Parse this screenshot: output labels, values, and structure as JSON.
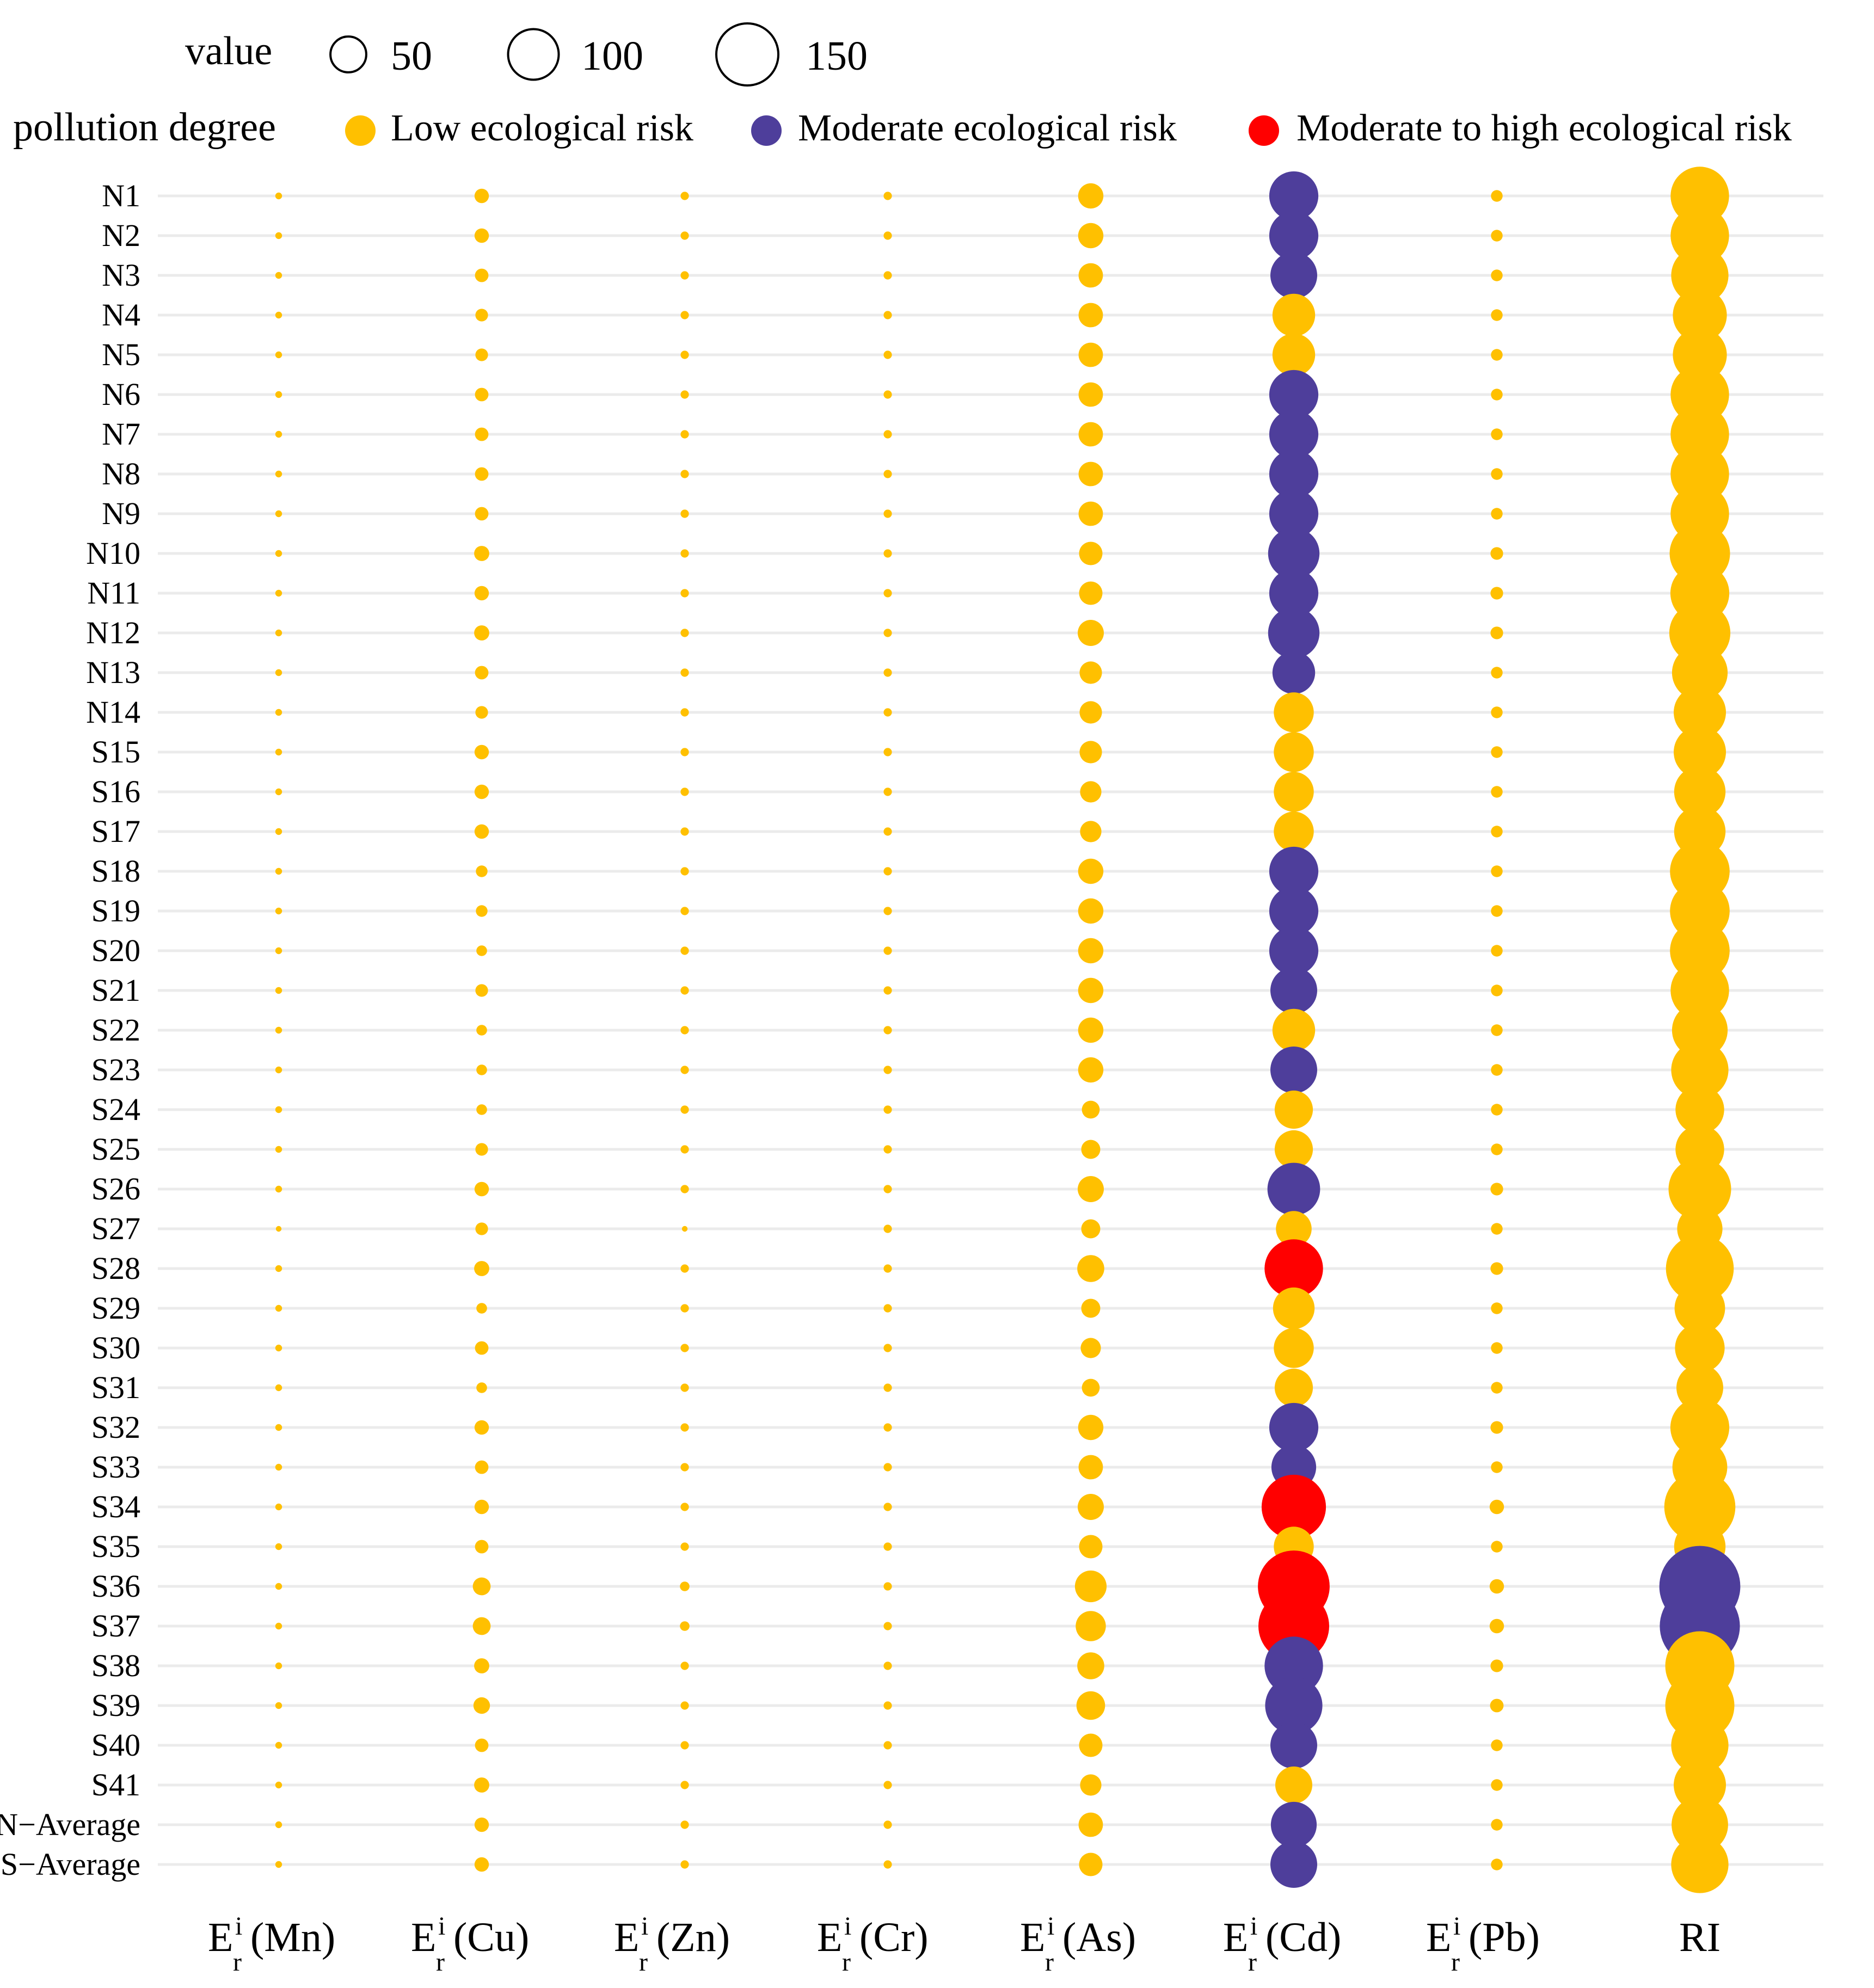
{
  "chart_data": {
    "type": "scatter",
    "subtype": "bubble",
    "title": "",
    "xlabel": "",
    "ylabel": "",
    "grid": true,
    "legend_position": "top",
    "size_legend": {
      "title": "value",
      "entries": [
        {
          "value": 50,
          "label": "50"
        },
        {
          "value": 100,
          "label": "100"
        },
        {
          "value": 150,
          "label": "150"
        }
      ]
    },
    "color_legend": {
      "title": "pollution degree",
      "entries": [
        {
          "key": "low",
          "label": "Low ecological risk",
          "color": "#ffc000"
        },
        {
          "key": "moderate",
          "label": "Moderate ecological risk",
          "color": "#4e3e9b"
        },
        {
          "key": "high",
          "label": "Moderate to high ecological risk",
          "color": "#ff0000"
        }
      ]
    },
    "x_categories": [
      {
        "label": "E",
        "sub": "r",
        "sup": "i",
        "paren": "(Mn)"
      },
      {
        "label": "E",
        "sub": "r",
        "sup": "i",
        "paren": "(Cu)"
      },
      {
        "label": "E",
        "sub": "r",
        "sup": "i",
        "paren": "(Zn)"
      },
      {
        "label": "E",
        "sub": "r",
        "sup": "i",
        "paren": "(Cr)"
      },
      {
        "label": "E",
        "sub": "r",
        "sup": "i",
        "paren": "(As)"
      },
      {
        "label": "E",
        "sub": "r",
        "sup": "i",
        "paren": "(Cd)"
      },
      {
        "label": "E",
        "sub": "r",
        "sup": "i",
        "paren": "(Pb)"
      },
      {
        "label": "RI",
        "sub": "",
        "sup": "",
        "paren": ""
      }
    ],
    "y_categories": [
      "N1",
      "N2",
      "N3",
      "N4",
      "N5",
      "N6",
      "N7",
      "N8",
      "N9",
      "N10",
      "N11",
      "N12",
      "N13",
      "N14",
      "S15",
      "S16",
      "S17",
      "S18",
      "S19",
      "S20",
      "S21",
      "S22",
      "S23",
      "S24",
      "S25",
      "S26",
      "S27",
      "S28",
      "S29",
      "S30",
      "S31",
      "S32",
      "S33",
      "S34",
      "S35",
      "S36",
      "S37",
      "S38",
      "S39",
      "S40",
      "S41",
      "N−Average",
      "S−Average"
    ],
    "series": [
      {
        "name": "Mn",
        "values": [
          1,
          1,
          1,
          1,
          1,
          1,
          1,
          1,
          1,
          1,
          1,
          1,
          1,
          1,
          1,
          1,
          1,
          1,
          1,
          1,
          1,
          1,
          1,
          1,
          1,
          1,
          0.7,
          1,
          1,
          1,
          1,
          1,
          1,
          1,
          1,
          1,
          1,
          1,
          1,
          1,
          1,
          1,
          1
        ]
      },
      {
        "name": "Cu",
        "values": [
          4.5,
          4.5,
          4,
          3.5,
          3.5,
          4,
          4,
          4,
          4,
          5,
          4.5,
          5,
          4,
          3.5,
          4.5,
          4.5,
          4.5,
          3,
          3,
          2.5,
          3.5,
          2.5,
          2.5,
          2.5,
          3.5,
          4.5,
          3.5,
          5,
          2.5,
          4,
          2.5,
          4.5,
          4,
          4.5,
          4,
          7,
          7,
          5,
          6,
          4,
          5,
          4.5,
          4.5
        ]
      },
      {
        "name": "Zn",
        "values": [
          1.5,
          1.5,
          1.5,
          1.5,
          1.5,
          1.5,
          1.5,
          1.5,
          1.5,
          1.5,
          1.5,
          1.5,
          1.5,
          1.5,
          1.5,
          1.5,
          1.5,
          1.5,
          1.5,
          1.5,
          1.5,
          1.5,
          1.5,
          1.5,
          1.5,
          1.5,
          0.7,
          1.5,
          1.5,
          1.5,
          1.5,
          1.5,
          1.5,
          1.5,
          1.5,
          2,
          2,
          1.5,
          1.5,
          1.5,
          1.5,
          1.5,
          1.5
        ]
      },
      {
        "name": "Cr",
        "values": [
          1.5,
          1.5,
          1.5,
          1.5,
          1.5,
          1.5,
          1.5,
          1.5,
          1.5,
          1.5,
          1.5,
          1.5,
          1.5,
          1.5,
          1.5,
          1.5,
          1.5,
          1.5,
          1.5,
          1.5,
          1.5,
          1.5,
          1.5,
          1.5,
          1.5,
          1.5,
          1.5,
          1.5,
          1.5,
          1.5,
          1.5,
          1.5,
          1.5,
          1.5,
          1.5,
          1.5,
          1.5,
          1.5,
          1.5,
          1.5,
          1.5,
          1.5,
          1.5
        ]
      },
      {
        "name": "As",
        "values": [
          14,
          14,
          13,
          13,
          13,
          13,
          13,
          13,
          13,
          12,
          12,
          15,
          11,
          11,
          11,
          10,
          10,
          14,
          14,
          14,
          14,
          14,
          14,
          7,
          8,
          15,
          8,
          16,
          8,
          9,
          7,
          14,
          13,
          15,
          12,
          22,
          20,
          16,
          18,
          12,
          10,
          13,
          12
        ]
      },
      {
        "name": "Cd",
        "values": [
          53,
          53,
          48,
          40,
          40,
          53,
          53,
          53,
          53,
          58,
          53,
          58,
          40,
          35,
          35,
          35,
          35,
          53,
          53,
          53,
          48,
          40,
          48,
          32,
          32,
          61,
          28,
          75,
          38,
          35,
          32,
          53,
          44,
          91,
          35,
          113,
          110,
          75,
          72,
          48,
          30,
          46,
          48
        ],
        "colors": [
          "moderate",
          "moderate",
          "moderate",
          "low",
          "low",
          "moderate",
          "moderate",
          "moderate",
          "moderate",
          "moderate",
          "moderate",
          "moderate",
          "moderate",
          "low",
          "low",
          "low",
          "low",
          "moderate",
          "moderate",
          "moderate",
          "moderate",
          "low",
          "moderate",
          "low",
          "low",
          "moderate",
          "low",
          "high",
          "low",
          "low",
          "low",
          "moderate",
          "moderate",
          "high",
          "low",
          "high",
          "high",
          "moderate",
          "moderate",
          "moderate",
          "low",
          "moderate",
          "moderate"
        ]
      },
      {
        "name": "Pb",
        "values": [
          3,
          3,
          3,
          3,
          3,
          3,
          3,
          3,
          3,
          3.5,
          3.5,
          3.5,
          3,
          3,
          3,
          3,
          3,
          3,
          3,
          3,
          3,
          3,
          3,
          3,
          3,
          3.5,
          3,
          3.5,
          3,
          3,
          3,
          3.5,
          3,
          4.5,
          3,
          4.5,
          4.5,
          3.5,
          4,
          3,
          3,
          3,
          3
        ]
      },
      {
        "name": "RI",
        "values": [
          75,
          75,
          72,
          64,
          64,
          75,
          75,
          75,
          75,
          80,
          76,
          82,
          68,
          60,
          60,
          58,
          58,
          78,
          78,
          78,
          75,
          68,
          72,
          52,
          52,
          86,
          45,
          101,
          56,
          54,
          48,
          76,
          66,
          111,
          58,
          144,
          141,
          105,
          105,
          72,
          60,
          70,
          72
        ],
        "colors": [
          "low",
          "low",
          "low",
          "low",
          "low",
          "low",
          "low",
          "low",
          "low",
          "low",
          "low",
          "low",
          "low",
          "low",
          "low",
          "low",
          "low",
          "low",
          "low",
          "low",
          "low",
          "low",
          "low",
          "low",
          "low",
          "low",
          "low",
          "low",
          "low",
          "low",
          "low",
          "low",
          "low",
          "low",
          "low",
          "moderate",
          "moderate",
          "low",
          "low",
          "low",
          "low",
          "low",
          "low"
        ]
      }
    ]
  }
}
